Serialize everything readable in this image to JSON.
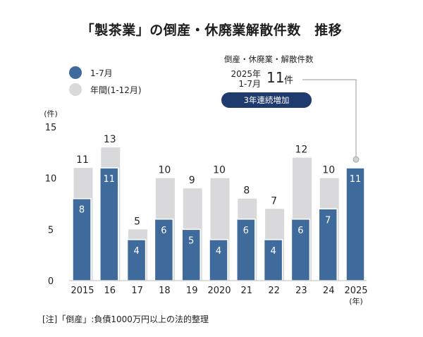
{
  "title": "「製茶業」の倒産・休廃業解散件数　推移",
  "legend": [
    {
      "label": "1-7月",
      "color": "#3f6a9c"
    },
    {
      "label": "年間(1-12月)",
      "color": "#d9d9db"
    }
  ],
  "callout": {
    "heading": "倒産・休廃業・解散件数",
    "period_line1": "2025年",
    "period_line2": "1-7月",
    "value": "11",
    "unit": "件",
    "badge": "3年連続増加"
  },
  "note": "[注]「倒産」:負債1000万円以上の法的整理",
  "chart_data": {
    "type": "bar",
    "categories": [
      "2015",
      "16",
      "17",
      "18",
      "19",
      "2020",
      "21",
      "22",
      "23",
      "24",
      "2025"
    ],
    "x_unit_label": "(年)",
    "y_unit_label": "(件)",
    "ylim": [
      0,
      15
    ],
    "yticks": [
      0,
      5,
      10,
      15
    ],
    "grid": false,
    "legend_position": "top-left",
    "series": [
      {
        "name": "年間(1-12月)",
        "color": "#d9d9db",
        "values": [
          11,
          13,
          5,
          10,
          9,
          10,
          8,
          7,
          12,
          10,
          null
        ]
      },
      {
        "name": "1-7月",
        "color": "#3f6a9c",
        "values": [
          8,
          11,
          4,
          6,
          5,
          4,
          6,
          4,
          6,
          7,
          11
        ]
      }
    ]
  }
}
